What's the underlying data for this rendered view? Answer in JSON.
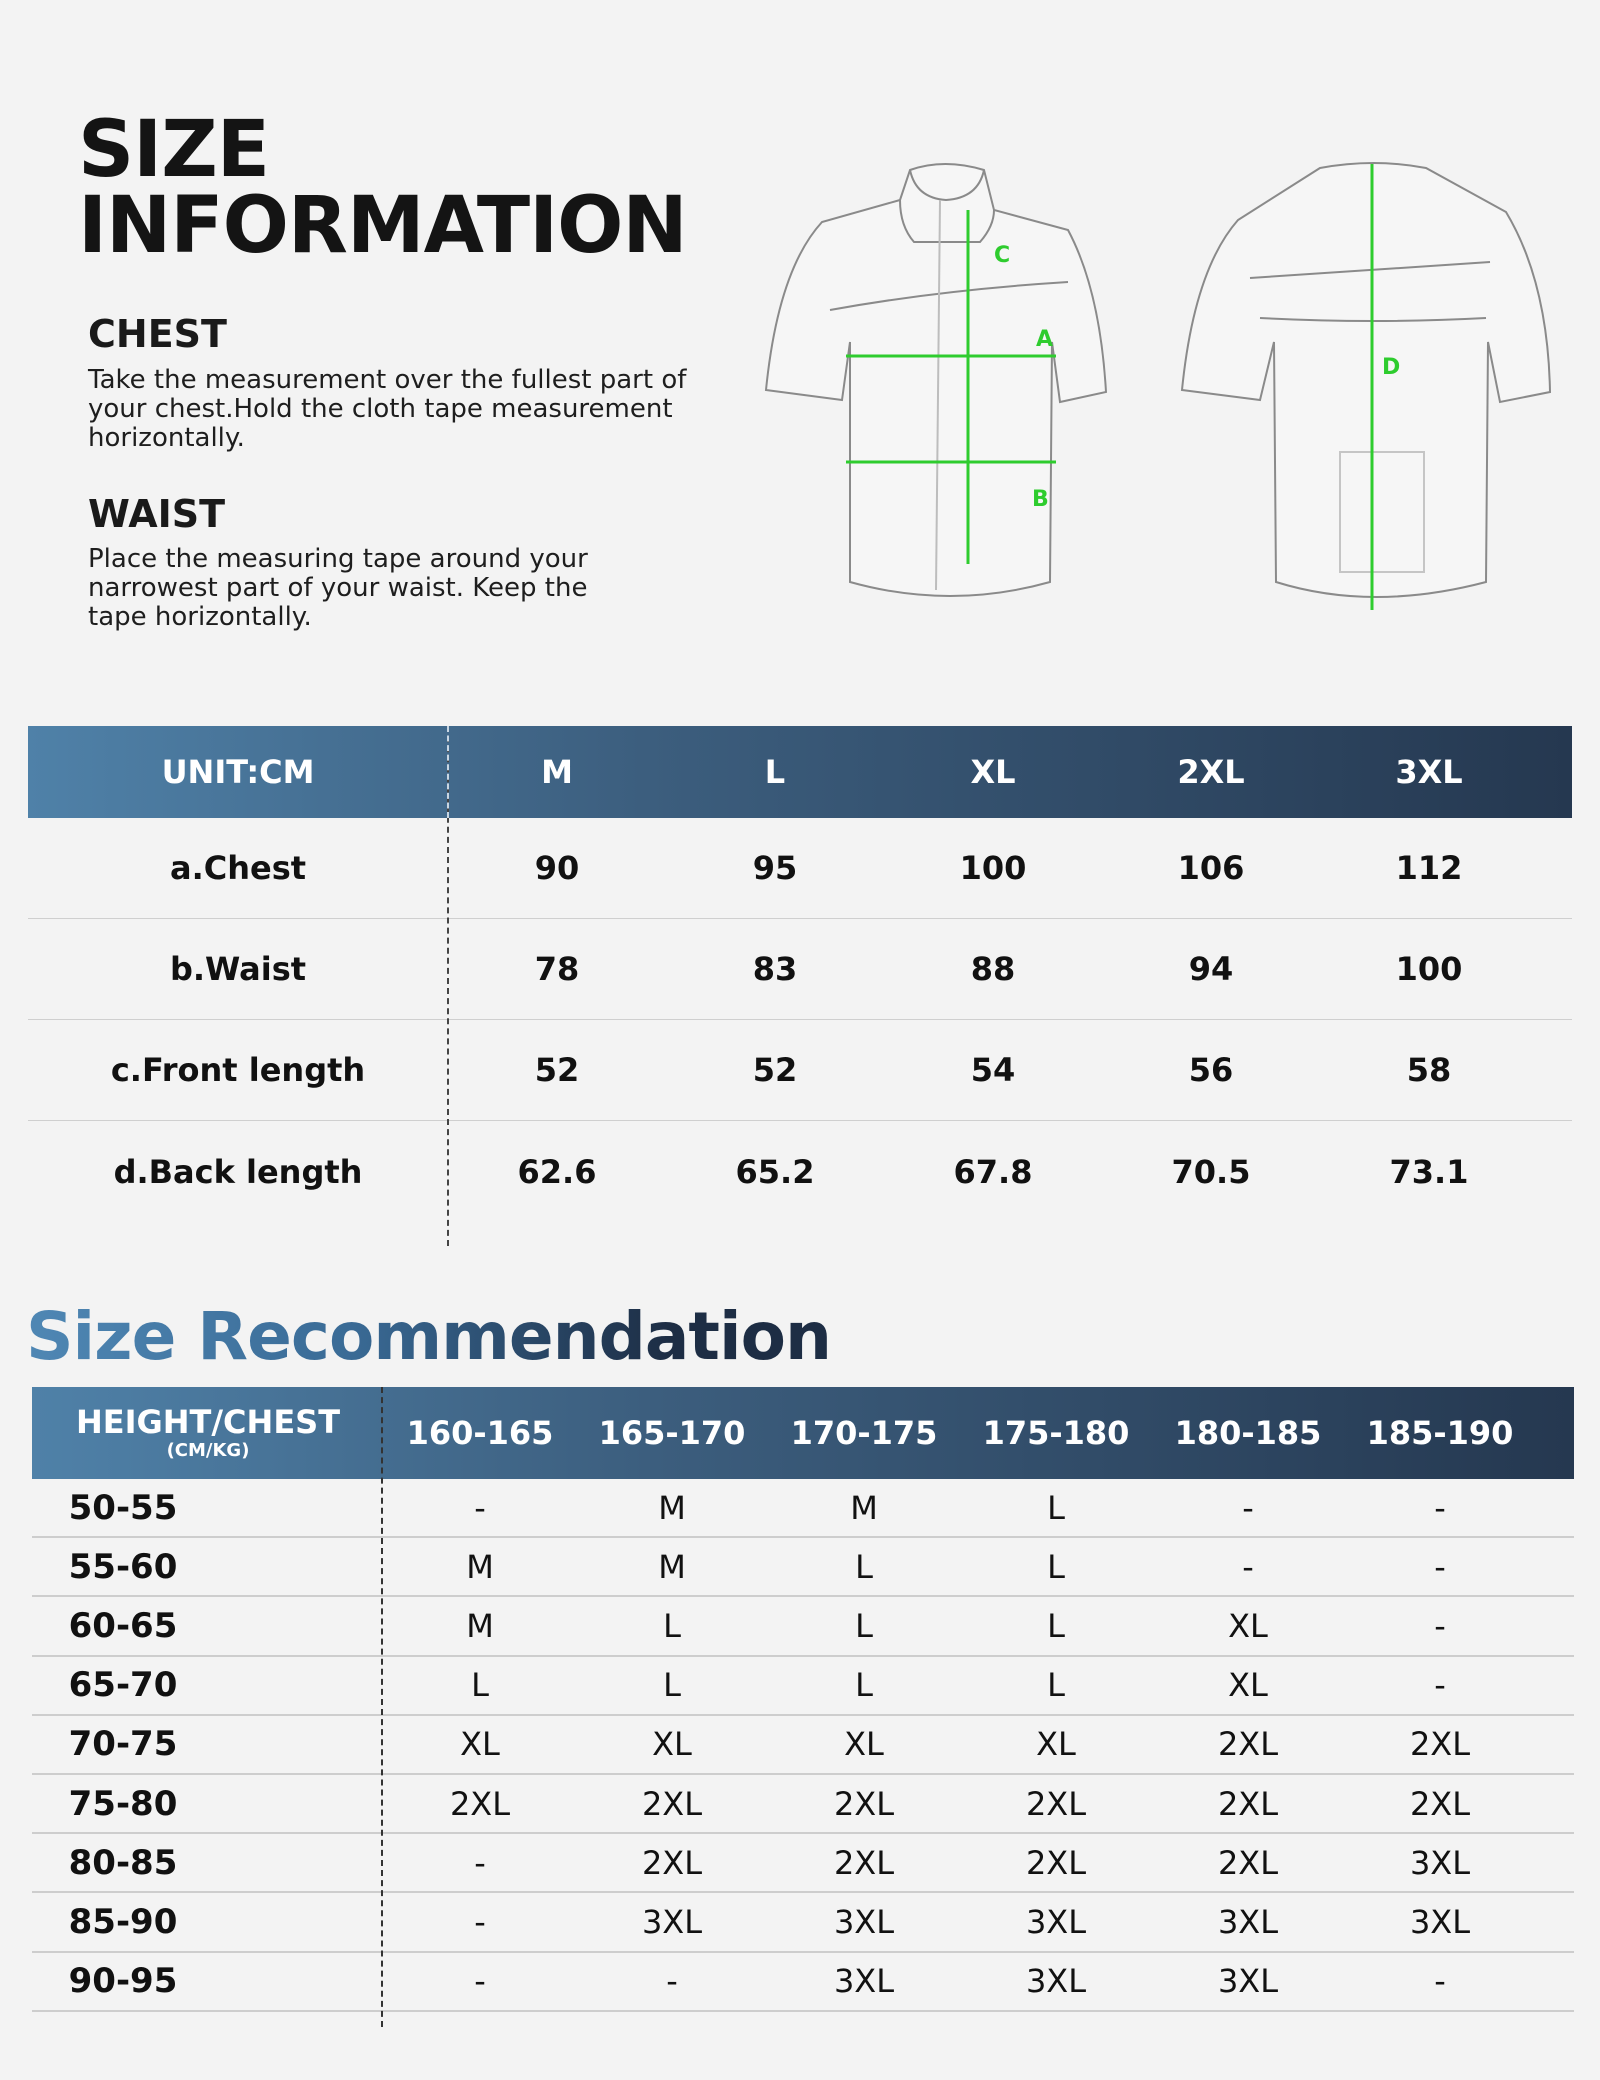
{
  "title": {
    "line1": "SIZE",
    "line2": "INFORMATION"
  },
  "chest": {
    "heading": "CHEST",
    "text": "Take the measurement over the fullest part of your chest.Hold the cloth tape measurement horizontally."
  },
  "waist": {
    "heading": "WAIST",
    "text": "Place the measuring tape around your narrowest part of your waist. Keep the tape horizontally."
  },
  "diagram": {
    "labels": [
      "A",
      "B",
      "C",
      "D"
    ],
    "line_color": "#2ecc2e",
    "jersey_color": "#f6f6f6",
    "outline_color": "#8a8a8a"
  },
  "size_table": {
    "unit_label": "UNIT:CM",
    "sizes": [
      "M",
      "L",
      "XL",
      "2XL",
      "3XL"
    ],
    "rows": [
      {
        "label": "a.Chest",
        "values": [
          "90",
          "95",
          "100",
          "106",
          "112"
        ]
      },
      {
        "label": "b.Waist",
        "values": [
          "78",
          "83",
          "88",
          "94",
          "100"
        ]
      },
      {
        "label": "c.Front length",
        "values": [
          "52",
          "52",
          "54",
          "56",
          "58"
        ]
      },
      {
        "label": "d.Back length",
        "values": [
          "62.6",
          "65.2",
          "67.8",
          "70.5",
          "73.1"
        ]
      }
    ]
  },
  "recommendation": {
    "title": "Size Recommendation",
    "corner_label": "HEIGHT/CHEST",
    "corner_sub": "(CM/KG)",
    "heights": [
      "160-165",
      "165-170",
      "170-175",
      "175-180",
      "180-185",
      "185-190"
    ],
    "rows": [
      {
        "label": "50-55",
        "values": [
          "-",
          "M",
          "M",
          "L",
          "-",
          "-"
        ]
      },
      {
        "label": "55-60",
        "values": [
          "M",
          "M",
          "L",
          "L",
          "-",
          "-"
        ]
      },
      {
        "label": "60-65",
        "values": [
          "M",
          "L",
          "L",
          "L",
          "XL",
          "-"
        ]
      },
      {
        "label": "65-70",
        "values": [
          "L",
          "L",
          "L",
          "L",
          "XL",
          "-"
        ]
      },
      {
        "label": "70-75",
        "values": [
          "XL",
          "XL",
          "XL",
          "XL",
          "2XL",
          "2XL"
        ]
      },
      {
        "label": "75-80",
        "values": [
          "2XL",
          "2XL",
          "2XL",
          "2XL",
          "2XL",
          "2XL"
        ]
      },
      {
        "label": "80-85",
        "values": [
          "-",
          "2XL",
          "2XL",
          "2XL",
          "2XL",
          "3XL"
        ]
      },
      {
        "label": "85-90",
        "values": [
          "-",
          "3XL",
          "3XL",
          "3XL",
          "3XL",
          "3XL"
        ]
      },
      {
        "label": "90-95",
        "values": [
          "-",
          "-",
          "3XL",
          "3XL",
          "3XL",
          "-"
        ]
      }
    ]
  }
}
